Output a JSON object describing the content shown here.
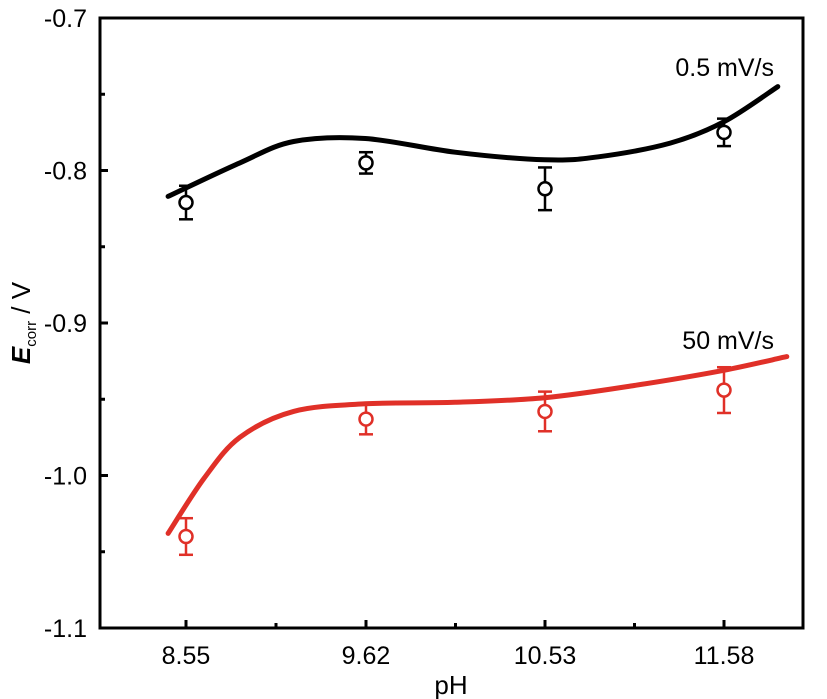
{
  "chart_data": {
    "type": "scatter",
    "title": "",
    "xlabel": "pH",
    "ylabel": {
      "symbol": "E",
      "subscript": "corr",
      "unit": " / V"
    },
    "categories": [
      "8.55",
      "9.62",
      "10.53",
      "11.58"
    ],
    "ylim": [
      -1.1,
      -0.7
    ],
    "y_ticks": [
      "-0.7",
      "-0.8",
      "-0.9",
      "-1.0",
      "-1.1"
    ],
    "grid": false,
    "series": [
      {
        "name": "0.5 mV/s",
        "color": "#000000",
        "values": [
          -0.821,
          -0.795,
          -0.812,
          -0.775
        ],
        "errors": [
          0.011,
          0.007,
          0.014,
          0.009
        ],
        "fit": {
          "x": [
            -0.1,
            0.3,
            0.6,
            1.0,
            1.5,
            2.0,
            2.3,
            2.7,
            3.0,
            3.3
          ],
          "y": [
            -0.817,
            -0.795,
            -0.781,
            -0.779,
            -0.788,
            -0.793,
            -0.791,
            -0.782,
            -0.768,
            -0.745
          ]
        }
      },
      {
        "name": "50 mV/s",
        "color": "#e03028",
        "values": [
          -1.04,
          -0.963,
          -0.958,
          -0.944
        ],
        "errors": [
          0.012,
          0.01,
          0.013,
          0.015
        ],
        "fit": {
          "x": [
            -0.1,
            0.1,
            0.3,
            0.6,
            1.0,
            1.5,
            2.0,
            2.5,
            3.0,
            3.35
          ],
          "y": [
            -1.038,
            -1.002,
            -0.975,
            -0.958,
            -0.953,
            -0.952,
            -0.949,
            -0.941,
            -0.931,
            -0.922
          ]
        }
      }
    ]
  }
}
